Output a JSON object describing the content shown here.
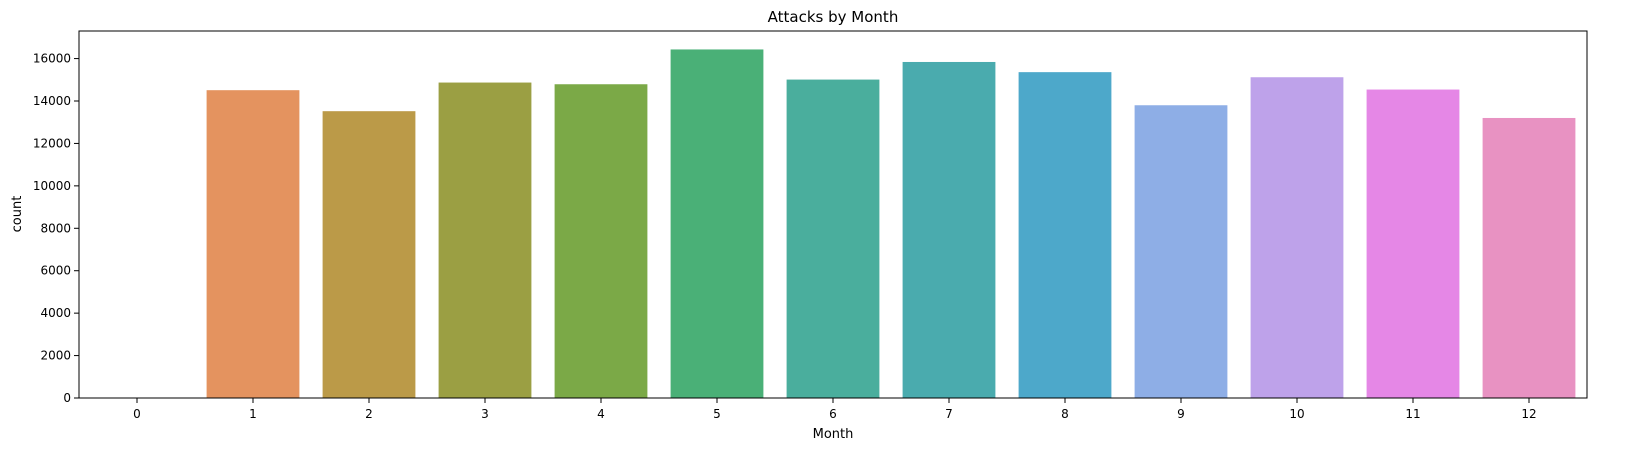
{
  "chart_data": {
    "type": "bar",
    "title": "Attacks by Month",
    "xlabel": "Month",
    "ylabel": "count",
    "categories": [
      "0",
      "1",
      "2",
      "3",
      "4",
      "5",
      "6",
      "7",
      "8",
      "9",
      "10",
      "11",
      "12"
    ],
    "values": [
      20,
      14510,
      13520,
      14870,
      14790,
      16430,
      15010,
      15840,
      15360,
      13800,
      15120,
      14540,
      13200
    ],
    "colors": [
      "#f77189",
      "#e4935f",
      "#bb9a48",
      "#9b9f43",
      "#7ba947",
      "#4ab077",
      "#4aae9d",
      "#4aabae",
      "#4da8ca",
      "#8eaee6",
      "#bea2ea",
      "#e587e6",
      "#e892c2"
    ],
    "ylim": [
      0,
      17300
    ],
    "yticks": [
      0,
      2000,
      4000,
      6000,
      8000,
      10000,
      12000,
      14000,
      16000
    ],
    "grid": false,
    "legend": "none"
  }
}
